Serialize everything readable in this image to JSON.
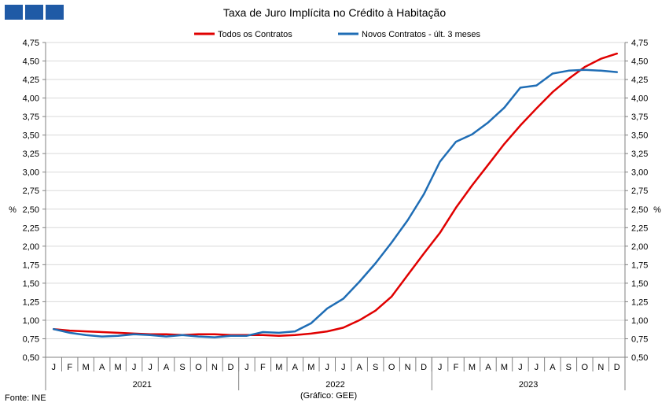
{
  "chart_data": {
    "type": "line",
    "title": "Taxa de Juro Implícita  no Crédito à Habitação",
    "ylabel": "%",
    "ylabel_right": "%",
    "ylim": [
      0.5,
      4.75
    ],
    "y_ticks": [
      "0,50",
      "0,75",
      "1,00",
      "1,25",
      "1,50",
      "1,75",
      "2,00",
      "2,25",
      "2,50",
      "2,75",
      "3,00",
      "3,25",
      "3,50",
      "3,75",
      "4,00",
      "4,25",
      "4,50",
      "4,75"
    ],
    "x_months": [
      "J",
      "F",
      "M",
      "A",
      "M",
      "J",
      "J",
      "A",
      "S",
      "O",
      "N",
      "D",
      "J",
      "F",
      "M",
      "A",
      "M",
      "J",
      "J",
      "A",
      "S",
      "O",
      "N",
      "D",
      "J",
      "F",
      "M",
      "A",
      "M",
      "J",
      "J",
      "A",
      "S",
      "O",
      "N",
      "D"
    ],
    "x_years": [
      "2021",
      "2022",
      "2023"
    ],
    "grid": true,
    "legend_position": "top",
    "series": [
      {
        "name": "Todos os Contratos",
        "color": "#e00000",
        "values": [
          0.88,
          0.86,
          0.85,
          0.84,
          0.83,
          0.82,
          0.81,
          0.81,
          0.8,
          0.81,
          0.81,
          0.8,
          0.8,
          0.8,
          0.79,
          0.8,
          0.82,
          0.85,
          0.9,
          1.0,
          1.13,
          1.32,
          1.61,
          1.9,
          2.18,
          2.52,
          2.82,
          3.1,
          3.38,
          3.63,
          3.86,
          4.08,
          4.26,
          4.42,
          4.53,
          4.6
        ]
      },
      {
        "name": "Novos Contratos - últ. 3 meses",
        "color": "#1f6db5",
        "values": [
          0.88,
          0.83,
          0.8,
          0.78,
          0.79,
          0.81,
          0.8,
          0.78,
          0.8,
          0.78,
          0.77,
          0.79,
          0.79,
          0.84,
          0.83,
          0.85,
          0.96,
          1.16,
          1.29,
          1.52,
          1.77,
          2.05,
          2.35,
          2.7,
          3.14,
          3.41,
          3.51,
          3.67,
          3.87,
          4.14,
          4.17,
          4.33,
          4.37,
          4.38,
          4.37,
          4.35
        ]
      }
    ]
  },
  "footer": {
    "source": "Fonte: INE",
    "credit": "(Gráfico: GEE)"
  }
}
